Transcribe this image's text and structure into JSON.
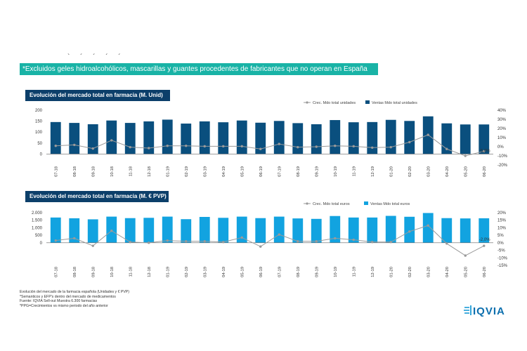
{
  "top_marks": "` ´ ´ ´ ´",
  "banner_text": "*Excluidos geles hidroalcohólicos, mascarillas y guantes procedentes de fabricantes que no operan en España",
  "colors": {
    "banner": "#19b3a6",
    "title_bg": "#0c3f6a",
    "units_bar": "#0a4f7e",
    "euros_bar": "#12a3e0",
    "growth_line": "#9a9a9a"
  },
  "chart_data": [
    {
      "type": "bar",
      "title": "Evolución del mercado total en farmacia (M. Unid)",
      "categories": [
        "07-18",
        "08-18",
        "09-18",
        "10-18",
        "11-18",
        "12-18",
        "01-19",
        "02-19",
        "03-19",
        "04-19",
        "05-19",
        "06-19",
        "07-19",
        "08-19",
        "09-19",
        "10-19",
        "11-19",
        "12-19",
        "01-20",
        "02-20",
        "03-20",
        "04-20",
        "05-20",
        "06-20"
      ],
      "y_left": {
        "ylim": [
          -50,
          200
        ],
        "ticks": [
          0,
          50,
          100,
          150,
          200
        ],
        "tick_labels": [
          "0",
          "50",
          "100",
          "150",
          "200"
        ]
      },
      "y_right": {
        "ylim": [
          -20,
          40
        ],
        "ticks": [
          -20,
          -10,
          0,
          10,
          20,
          30,
          40
        ],
        "tick_labels": [
          "-20%",
          "-10%",
          "0%",
          "10%",
          "20%",
          "30%",
          "40%"
        ]
      },
      "series": [
        {
          "name": "Ventas Mdo total unidades",
          "kind": "bar",
          "axis": "left",
          "values": [
            146,
            142,
            136,
            153,
            142,
            149,
            157,
            139,
            149,
            145,
            153,
            143,
            151,
            141,
            136,
            155,
            145,
            146,
            156,
            151,
            172,
            140,
            135,
            135
          ]
        },
        {
          "name": "Crec. Mdo total unidades",
          "kind": "line",
          "axis": "right",
          "values": [
            1.0,
            2.0,
            -2.0,
            7.0,
            -0.5,
            -1.5,
            1.0,
            1.0,
            0.5,
            0.5,
            0.5,
            -2.5,
            3.0,
            -0.5,
            0.0,
            1.0,
            0.5,
            -1.0,
            -0.5,
            5.0,
            13.0,
            -2.5,
            -10.0,
            -5.0
          ]
        }
      ],
      "data_label": {
        "text": "-5,0%",
        "index": 23
      },
      "legend": "top-right"
    },
    {
      "type": "bar",
      "title": "Evolución del mercado total en farmacia (M. € PVP)",
      "categories": [
        "07-18",
        "08-18",
        "09-18",
        "10-18",
        "11-18",
        "12-18",
        "01-19",
        "02-19",
        "03-19",
        "04-19",
        "05-19",
        "06-19",
        "07-19",
        "08-19",
        "09-19",
        "10-19",
        "11-19",
        "12-19",
        "01-20",
        "02-20",
        "03-20",
        "04-20",
        "05-20",
        "06-20"
      ],
      "y_left": {
        "ylim": [
          -1500,
          2000
        ],
        "ticks": [
          0,
          500,
          1000,
          1500,
          2000
        ],
        "tick_labels": [
          "0",
          "500",
          "1.000",
          "1.500",
          "2.000"
        ]
      },
      "y_right": {
        "ylim": [
          -15,
          20
        ],
        "ticks": [
          -15,
          -10,
          -5,
          0,
          5,
          10,
          15,
          20
        ],
        "tick_labels": [
          "-15%",
          "-10%",
          "-5%",
          "0%",
          "5%",
          "10%",
          "15%",
          "20%"
        ]
      },
      "series": [
        {
          "name": "Ventas Mdo total euros",
          "kind": "bar",
          "axis": "left",
          "values": [
            1680,
            1630,
            1560,
            1740,
            1640,
            1660,
            1740,
            1570,
            1720,
            1660,
            1740,
            1640,
            1740,
            1620,
            1590,
            1780,
            1680,
            1680,
            1790,
            1730,
            1980,
            1640,
            1620,
            1630
          ]
        },
        {
          "name": "Crec. Mdo total euros",
          "kind": "line",
          "axis": "right",
          "values": [
            1.5,
            3.0,
            -2.0,
            8.0,
            0.5,
            0.0,
            1.5,
            1.0,
            1.0,
            0.5,
            3.5,
            -2.5,
            5.5,
            1.0,
            1.0,
            3.0,
            2.0,
            0.5,
            0.5,
            7.5,
            11.5,
            -0.5,
            -8.5,
            -2.0
          ]
        }
      ],
      "data_label": {
        "text": "-2,0%",
        "index": 23
      },
      "legend": "top-right"
    }
  ],
  "footnotes": [
    "Evolución del mercado de la farmacia española (Unidades y € PVP)",
    "*Semanticos y EFP's dentro del mercado de medicamentos",
    "Fuente: IQVIA Sell-out Muestra 6.300 farmacias",
    "*PPG=Crecimientos vs mismo periodo del año anterior"
  ],
  "logo_text": "IQVIA"
}
